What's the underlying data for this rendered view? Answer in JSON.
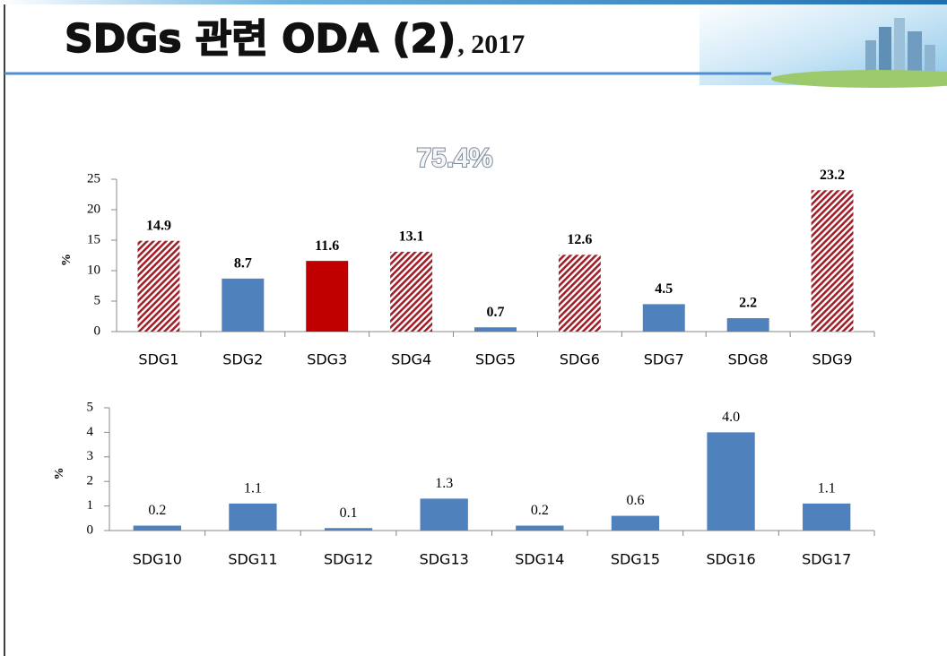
{
  "slide": {
    "title": "SDGs 관련 ODA (2)",
    "year": ", 2017"
  },
  "chart_data": [
    {
      "type": "bar",
      "annotation": "75.4%",
      "y_label": "%",
      "categories": [
        "SDG1",
        "SDG2",
        "SDG3",
        "SDG4",
        "SDG5",
        "SDG6",
        "SDG7",
        "SDG8",
        "SDG9"
      ],
      "values": [
        14.9,
        8.7,
        11.6,
        13.1,
        0.7,
        12.6,
        4.5,
        2.2,
        23.2
      ],
      "colors": [
        "#a0202a",
        "#4f81bd",
        "#c00000",
        "#a0202a",
        "#4f81bd",
        "#a0202a",
        "#4f81bd",
        "#4f81bd",
        "#a0202a"
      ],
      "hatched": [
        true,
        false,
        false,
        true,
        false,
        true,
        false,
        false,
        true
      ],
      "ylim": [
        0,
        25
      ],
      "yticks": [
        0,
        5,
        10,
        15,
        20,
        25
      ]
    },
    {
      "type": "bar",
      "y_label": "%",
      "categories": [
        "SDG10",
        "SDG11",
        "SDG12",
        "SDG13",
        "SDG14",
        "SDG15",
        "SDG16",
        "SDG17"
      ],
      "values": [
        0.2,
        1.1,
        0.1,
        1.3,
        0.2,
        0.6,
        4,
        1.1
      ],
      "value_labels": [
        "0.2",
        "1.1",
        "0.1",
        "1.3",
        "0.2",
        "0.6",
        "4.0",
        "1.1"
      ],
      "colors": [
        "#4f81bd",
        "#4f81bd",
        "#4f81bd",
        "#4f81bd",
        "#4f81bd",
        "#4f81bd",
        "#4f81bd",
        "#4f81bd"
      ],
      "hatched": [
        false,
        false,
        false,
        false,
        false,
        false,
        false,
        false
      ],
      "ylim": [
        0,
        5
      ],
      "yticks": [
        0,
        1,
        2,
        3,
        4,
        5
      ]
    }
  ]
}
